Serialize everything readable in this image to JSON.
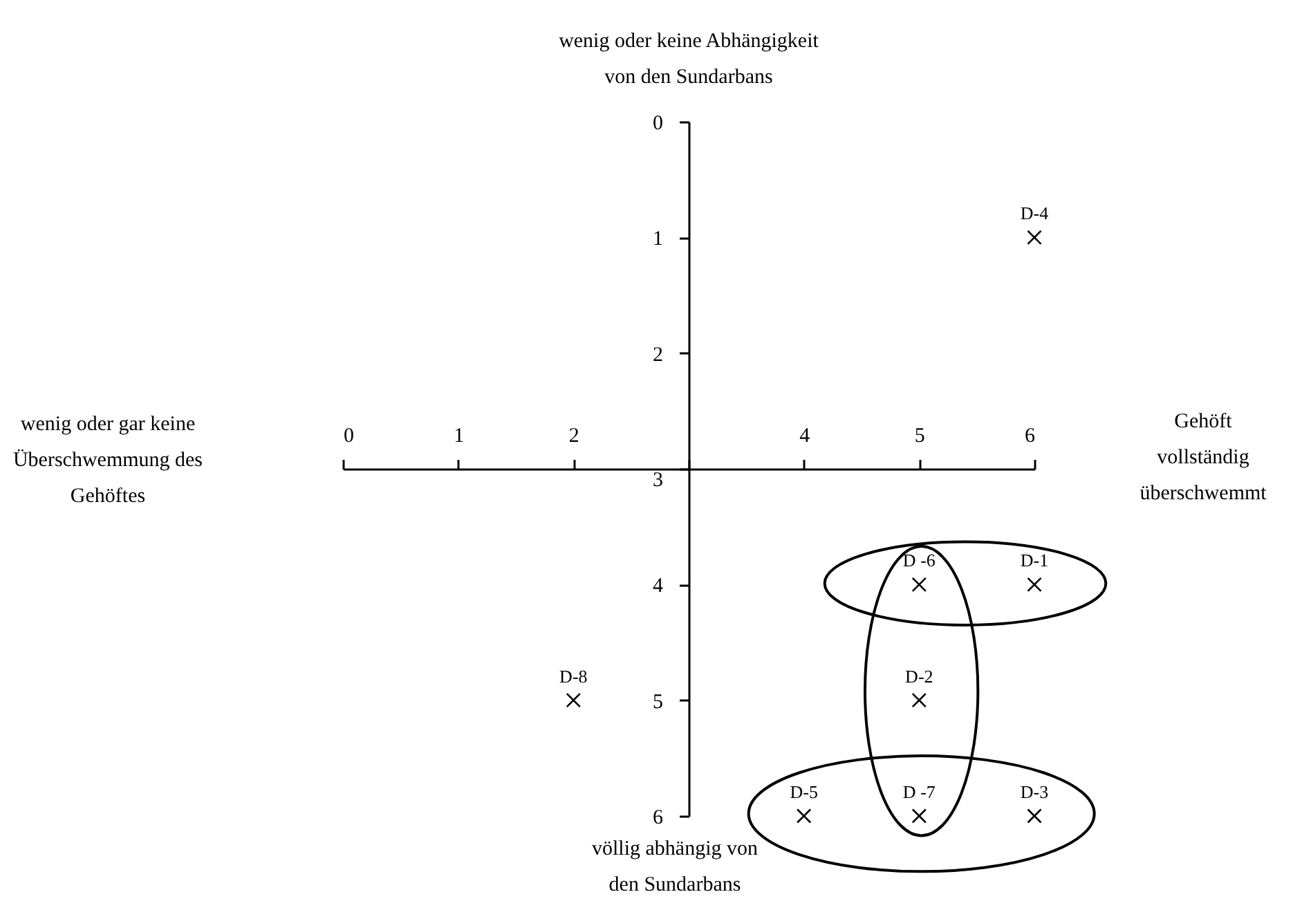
{
  "chart_data": {
    "type": "scatter",
    "x": [
      6,
      5,
      6,
      5,
      2,
      4,
      5,
      6
    ],
    "values": [
      1,
      4,
      4,
      5,
      5,
      6,
      6,
      6
    ],
    "marker": "cross",
    "color": "#000000",
    "xlim": [
      0,
      6
    ],
    "xticks": [
      0,
      1,
      2,
      {
        "value": 3,
        "label": null
      },
      4,
      5,
      6
    ],
    "ylim": [
      6,
      0
    ],
    "yticks": [
      0,
      1,
      2,
      3,
      4,
      5,
      6
    ],
    "annotations": [
      {
        "text": "D-4",
        "x": 6,
        "y": 1
      },
      {
        "text": "D -6",
        "x": 5,
        "y": 4
      },
      {
        "text": "D-1",
        "x": 6,
        "y": 4
      },
      {
        "text": "D-2",
        "x": 5,
        "y": 5
      },
      {
        "text": "D-8",
        "x": 2,
        "y": 5
      },
      {
        "text": "D-5",
        "x": 4,
        "y": 6
      },
      {
        "text": "D -7",
        "x": 5,
        "y": 6
      },
      {
        "text": "D-3",
        "x": 6,
        "y": 6
      },
      "wenig oder keine Abhängigkeit\nvon den Sundarbans",
      "völlig abhängig von\nden Sundarbans",
      "wenig oder gar keine\nÜberschwemmung des\nGehöftes",
      "Gehöft\nvollständig\nüberschwemmt"
    ]
  }
}
